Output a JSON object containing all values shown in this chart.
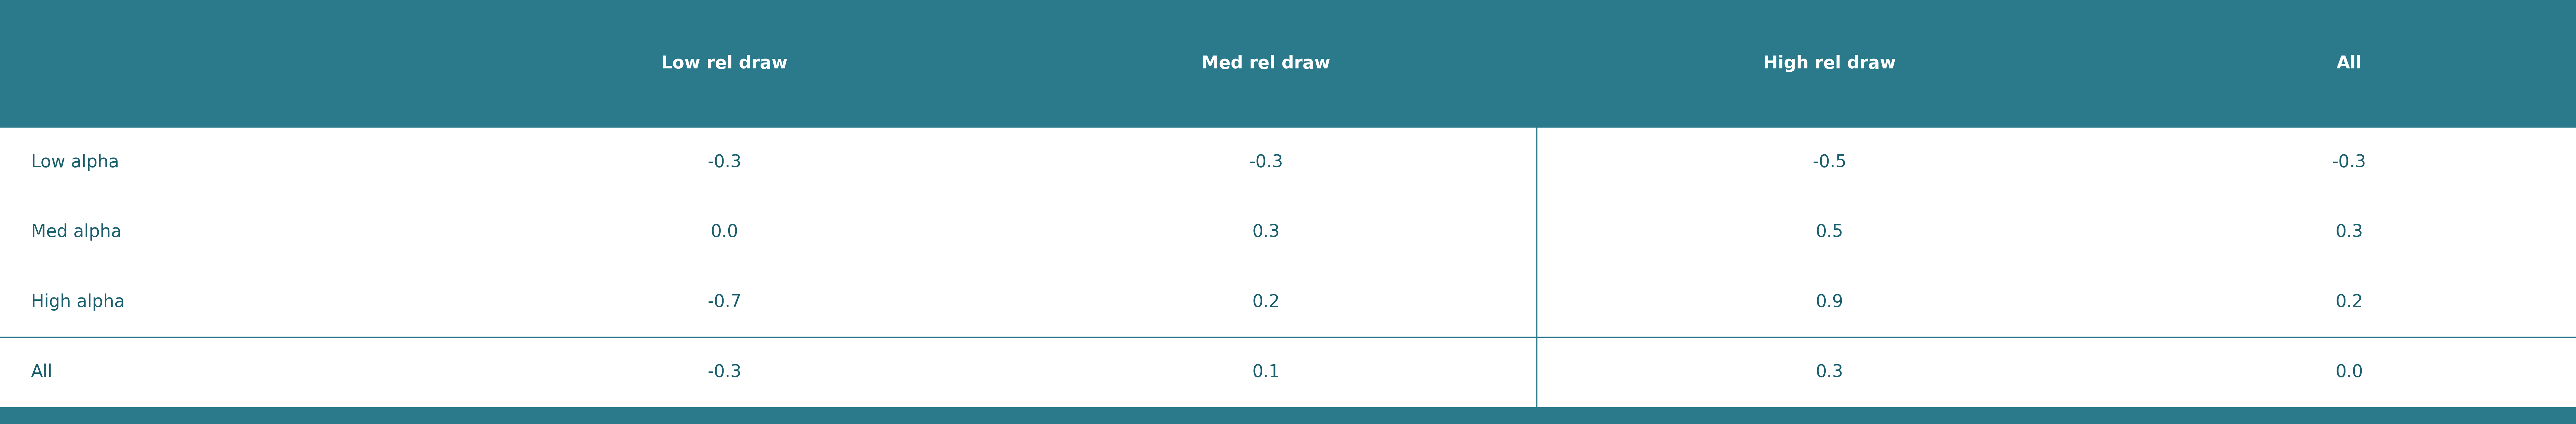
{
  "header_bg_color": "#2a7a8c",
  "header_text_color": "#ffffff",
  "body_text_color": "#1a5f6e",
  "body_bg_color": "#ffffff",
  "bottom_bar_color": "#2a7a8c",
  "divider_color": "#2a7a8c",
  "col_headers": [
    "",
    "Low rel draw",
    "Med rel draw",
    "High rel draw",
    "All"
  ],
  "rows": [
    [
      "Low alpha",
      "-0.3",
      "-0.3",
      "-0.5",
      "-0.3"
    ],
    [
      "Med alpha",
      "0.0",
      "0.3",
      "0.5",
      "0.3"
    ],
    [
      "High alpha",
      "-0.7",
      "0.2",
      "0.9",
      "0.2"
    ],
    [
      "All",
      "-0.3",
      "0.1",
      "0.3",
      "0.0"
    ]
  ],
  "col_separator_after": 3,
  "row_separator_before": 3,
  "header_fontsize": 38,
  "body_fontsize": 38,
  "fig_width": 78.0,
  "fig_height": 12.83
}
